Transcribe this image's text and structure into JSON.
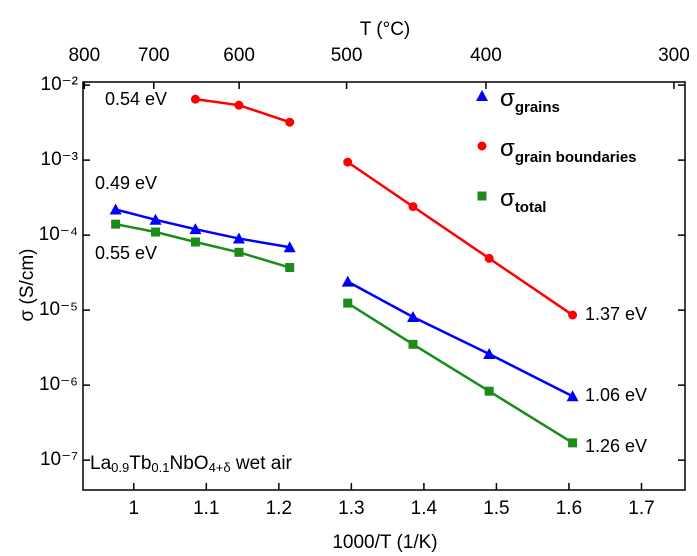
{
  "chart_data": {
    "type": "scatter",
    "x_label": "1000/T (1/K)",
    "x2_label": "T (°C)",
    "y_label": "σ (S/cm)",
    "x": [
      0.975,
      1.03,
      1.085,
      1.145,
      1.215,
      null,
      1.295,
      1.385,
      1.49,
      1.605
    ],
    "xlim": [
      0.93,
      1.76
    ],
    "xticks": [
      1.0,
      1.1,
      1.2,
      1.3,
      1.4,
      1.5,
      1.6,
      1.7
    ],
    "x2ticks": [
      800,
      700,
      600,
      500,
      400,
      300
    ],
    "ylim": [
      4e-08,
      0.011
    ],
    "log_y": true,
    "yticks": [
      {
        "value": 1e-07,
        "label": "10⁻⁷"
      },
      {
        "value": 1e-06,
        "label": "10⁻⁶"
      },
      {
        "value": 1e-05,
        "label": "10⁻⁵"
      },
      {
        "value": 0.0001,
        "label": "10⁻⁴"
      },
      {
        "value": 0.001,
        "label": "10⁻³"
      },
      {
        "value": 0.01,
        "label": "10⁻²"
      }
    ],
    "legend_symbol": "σ",
    "series": [
      {
        "name": "grains",
        "color": "#0000ff",
        "marker": "triangle",
        "values": [
          0.00022,
          0.00016,
          0.00012,
          9e-05,
          6.9e-05,
          null,
          2.4e-05,
          8.1e-06,
          2.6e-06,
          7.1e-07
        ]
      },
      {
        "name": "grain boundaries",
        "color": "#ff0000",
        "marker": "circle",
        "values": [
          null,
          null,
          0.0065,
          0.0054,
          0.0032,
          null,
          0.00094,
          0.00024,
          4.9e-05,
          8.6e-06
        ]
      },
      {
        "name": "total",
        "color": "#1a8c1a",
        "marker": "square",
        "values": [
          0.00014,
          0.00011,
          8.1e-05,
          5.9e-05,
          3.7e-05,
          null,
          1.24e-05,
          3.5e-06,
          8.3e-07,
          1.7e-07
        ]
      }
    ],
    "annotations": [
      {
        "text": "0.54 eV",
        "color": "#ff0000"
      },
      {
        "text": "0.49 eV",
        "color": "#0000ff"
      },
      {
        "text": "0.55 eV",
        "color": "#1a8c1a"
      },
      {
        "text": "1.37 eV",
        "color": "#ff0000"
      },
      {
        "text": "1.06 eV",
        "color": "#0000ff"
      },
      {
        "text": "1.26 eV",
        "color": "#1a8c1a"
      }
    ],
    "sample_label": [
      {
        "text": "La",
        "sub": false
      },
      {
        "text": "0.9",
        "sub": true
      },
      {
        "text": "Tb",
        "sub": false
      },
      {
        "text": "0.1",
        "sub": true
      },
      {
        "text": "NbO",
        "sub": false
      },
      {
        "text": "4+δ",
        "sub": true
      },
      {
        "text": " wet air",
        "sub": false
      }
    ]
  }
}
